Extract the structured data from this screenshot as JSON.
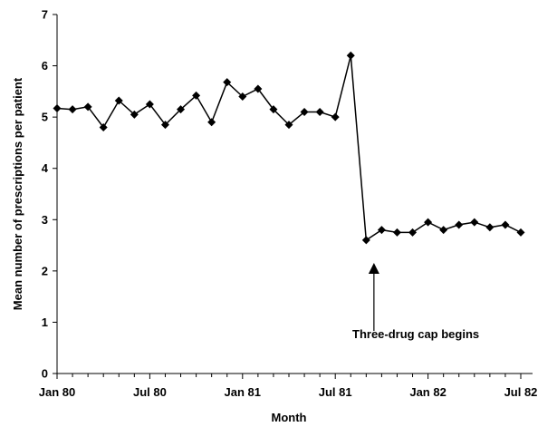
{
  "chart_data": {
    "type": "line",
    "xlabel": "Month",
    "ylabel": "Mean number of prescriptions per patient",
    "ylim": [
      0,
      7
    ],
    "y_ticks": [
      0,
      1,
      2,
      3,
      4,
      5,
      6,
      7
    ],
    "x_tick_labels": [
      "Jan 80",
      "Jul 80",
      "Jan 81",
      "Jul 81",
      "Jan 82",
      "Jul 82"
    ],
    "x_tick_months": [
      0,
      6,
      12,
      18,
      24,
      30
    ],
    "xlim_months": [
      0,
      31
    ],
    "marker": "diamond",
    "line_color": "#000000",
    "grid": false,
    "series": [
      {
        "name": "",
        "x_months": [
          0,
          1,
          2,
          3,
          4,
          5,
          6,
          7,
          8,
          9,
          10,
          11,
          12,
          13,
          14,
          15,
          16,
          17,
          18,
          19,
          20,
          21,
          22,
          23,
          24,
          25,
          26,
          27,
          28,
          29,
          30
        ],
        "values": [
          5.17,
          5.15,
          5.2,
          4.8,
          5.32,
          5.05,
          5.25,
          4.85,
          5.15,
          5.42,
          4.9,
          5.68,
          5.4,
          5.55,
          5.15,
          4.85,
          5.1,
          5.1,
          5.0,
          6.2,
          2.6,
          2.8,
          2.75,
          2.75,
          2.95,
          2.8,
          2.9,
          2.95,
          2.85,
          2.9,
          2.75
        ]
      }
    ],
    "annotations": [
      {
        "text": "Three-drug cap begins",
        "arrow_to_month": 20.5
      }
    ]
  }
}
